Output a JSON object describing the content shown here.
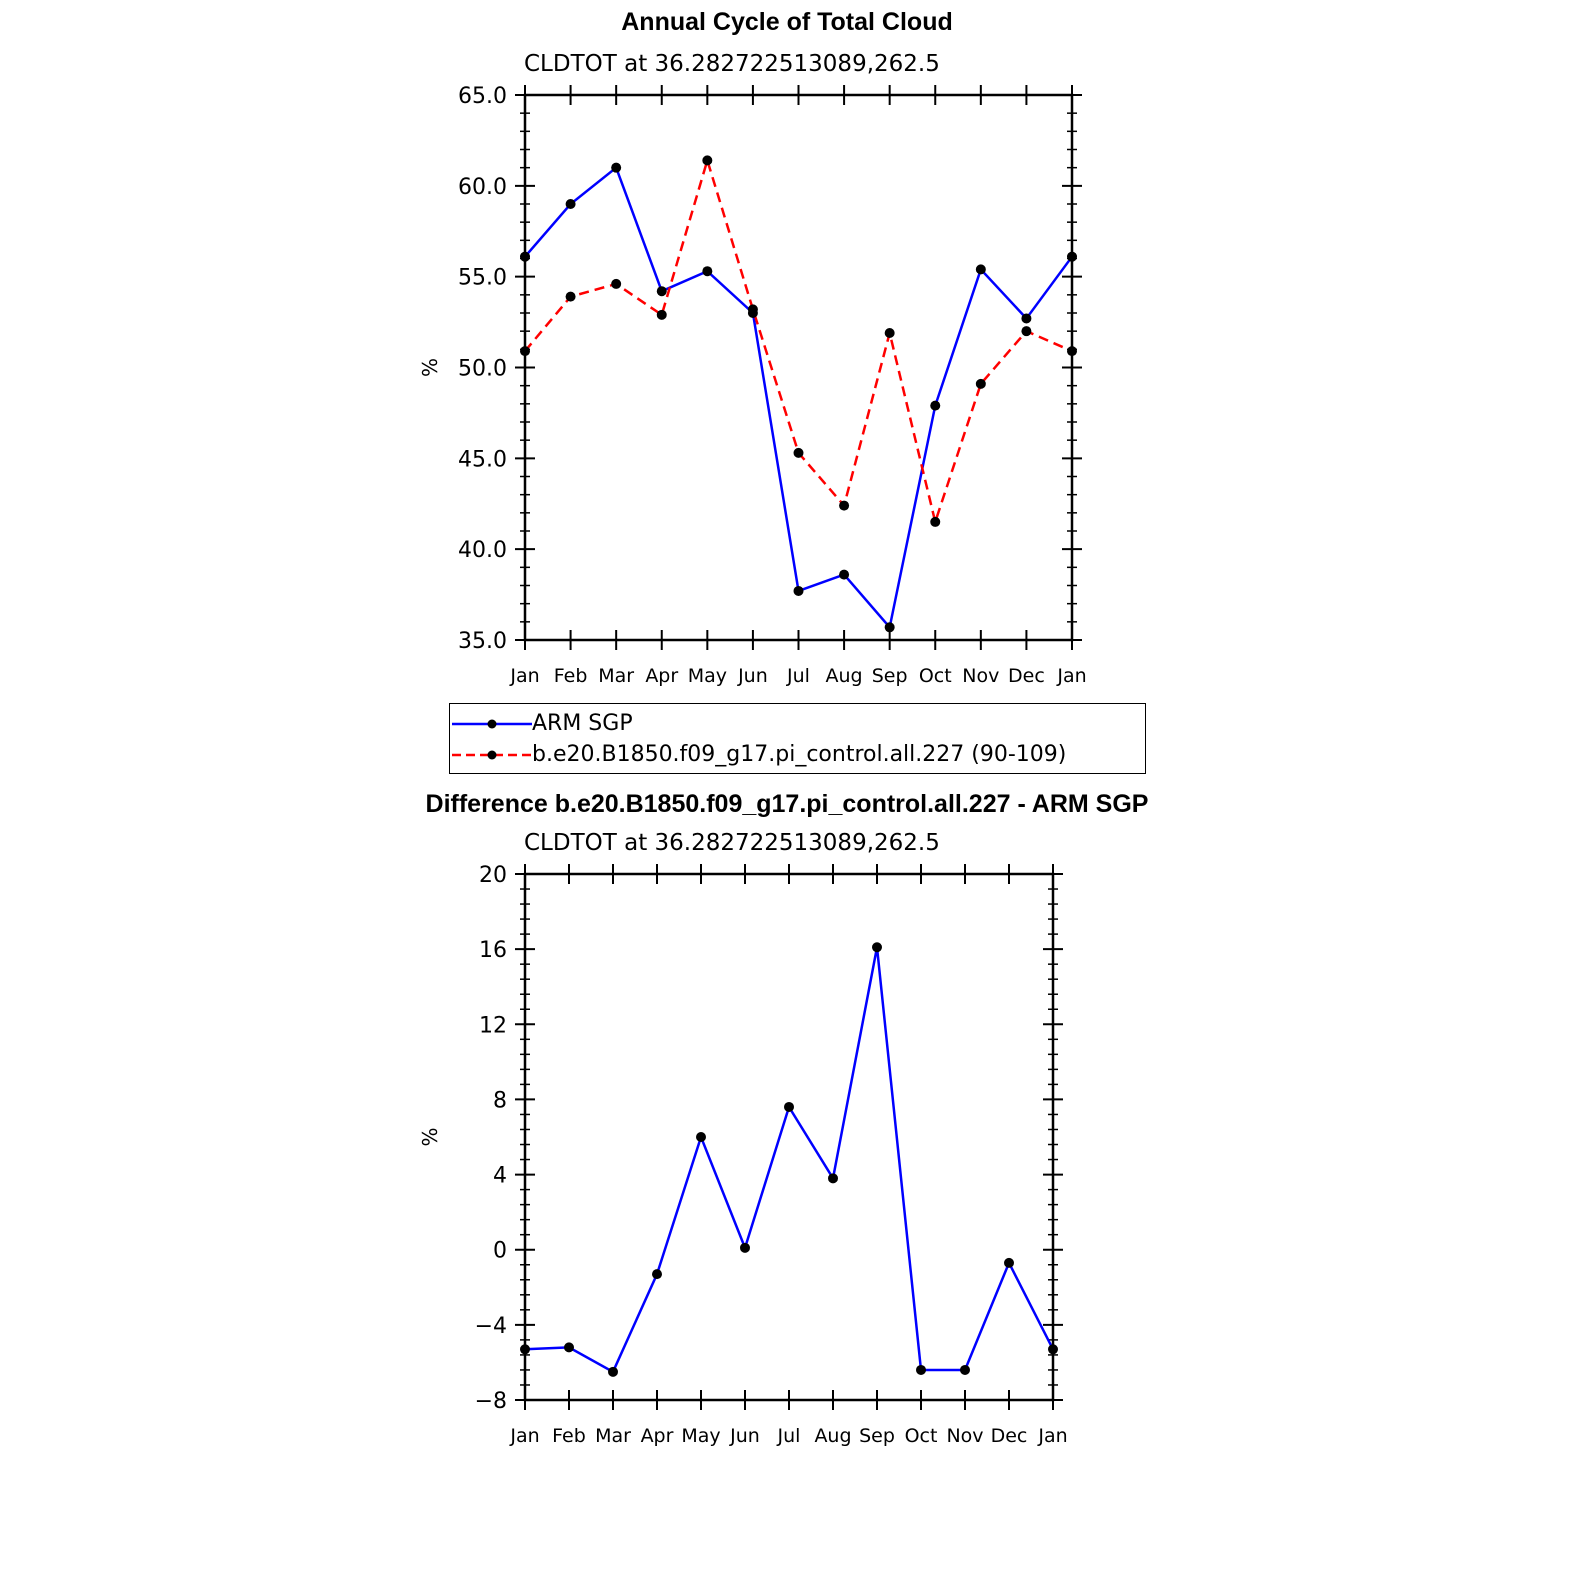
{
  "chart_data": [
    {
      "type": "line",
      "title": "Annual Cycle of Total Cloud",
      "subtitle": "CLDTOT at 36.282722513089,262.5",
      "ylabel": "%",
      "ylim": [
        35.0,
        65.0
      ],
      "yticks": [
        "35.0",
        "40.0",
        "45.0",
        "50.0",
        "55.0",
        "60.0",
        "65.0"
      ],
      "categories": [
        "Jan",
        "Feb",
        "Mar",
        "Apr",
        "May",
        "Jun",
        "Jul",
        "Aug",
        "Sep",
        "Oct",
        "Nov",
        "Dec",
        "Jan"
      ],
      "series": [
        {
          "name": "ARM SGP",
          "color": "#0000ff",
          "dash": "solid",
          "values": [
            56.1,
            59.0,
            61.0,
            54.2,
            55.3,
            53.0,
            37.7,
            38.6,
            35.7,
            47.9,
            55.4,
            52.7,
            56.1
          ]
        },
        {
          "name": "b.e20.B1850.f09_g17.pi_control.all.227 (90-109)",
          "color": "#ff0000",
          "dash": "dashed",
          "values": [
            50.9,
            53.9,
            54.6,
            52.9,
            61.4,
            53.2,
            45.3,
            42.4,
            51.9,
            41.5,
            49.1,
            52.0,
            50.9
          ]
        }
      ],
      "legend": "bottom"
    },
    {
      "type": "line",
      "title": "Difference b.e20.B1850.f09_g17.pi_control.all.227 - ARM SGP",
      "subtitle": "CLDTOT at 36.282722513089,262.5",
      "ylabel": "%",
      "ylim": [
        -8,
        20
      ],
      "yticks": [
        "-8",
        "-4",
        "0",
        "4",
        "8",
        "12",
        "16",
        "20"
      ],
      "categories": [
        "Jan",
        "Feb",
        "Mar",
        "Apr",
        "May",
        "Jun",
        "Jul",
        "Aug",
        "Sep",
        "Oct",
        "Nov",
        "Dec",
        "Jan"
      ],
      "series": [
        {
          "color": "#0000ff",
          "dash": "solid",
          "values": [
            -5.3,
            -5.2,
            -6.5,
            -1.3,
            6.0,
            0.1,
            7.6,
            3.8,
            16.1,
            -6.4,
            -6.4,
            -0.7,
            -5.3
          ]
        }
      ]
    }
  ]
}
